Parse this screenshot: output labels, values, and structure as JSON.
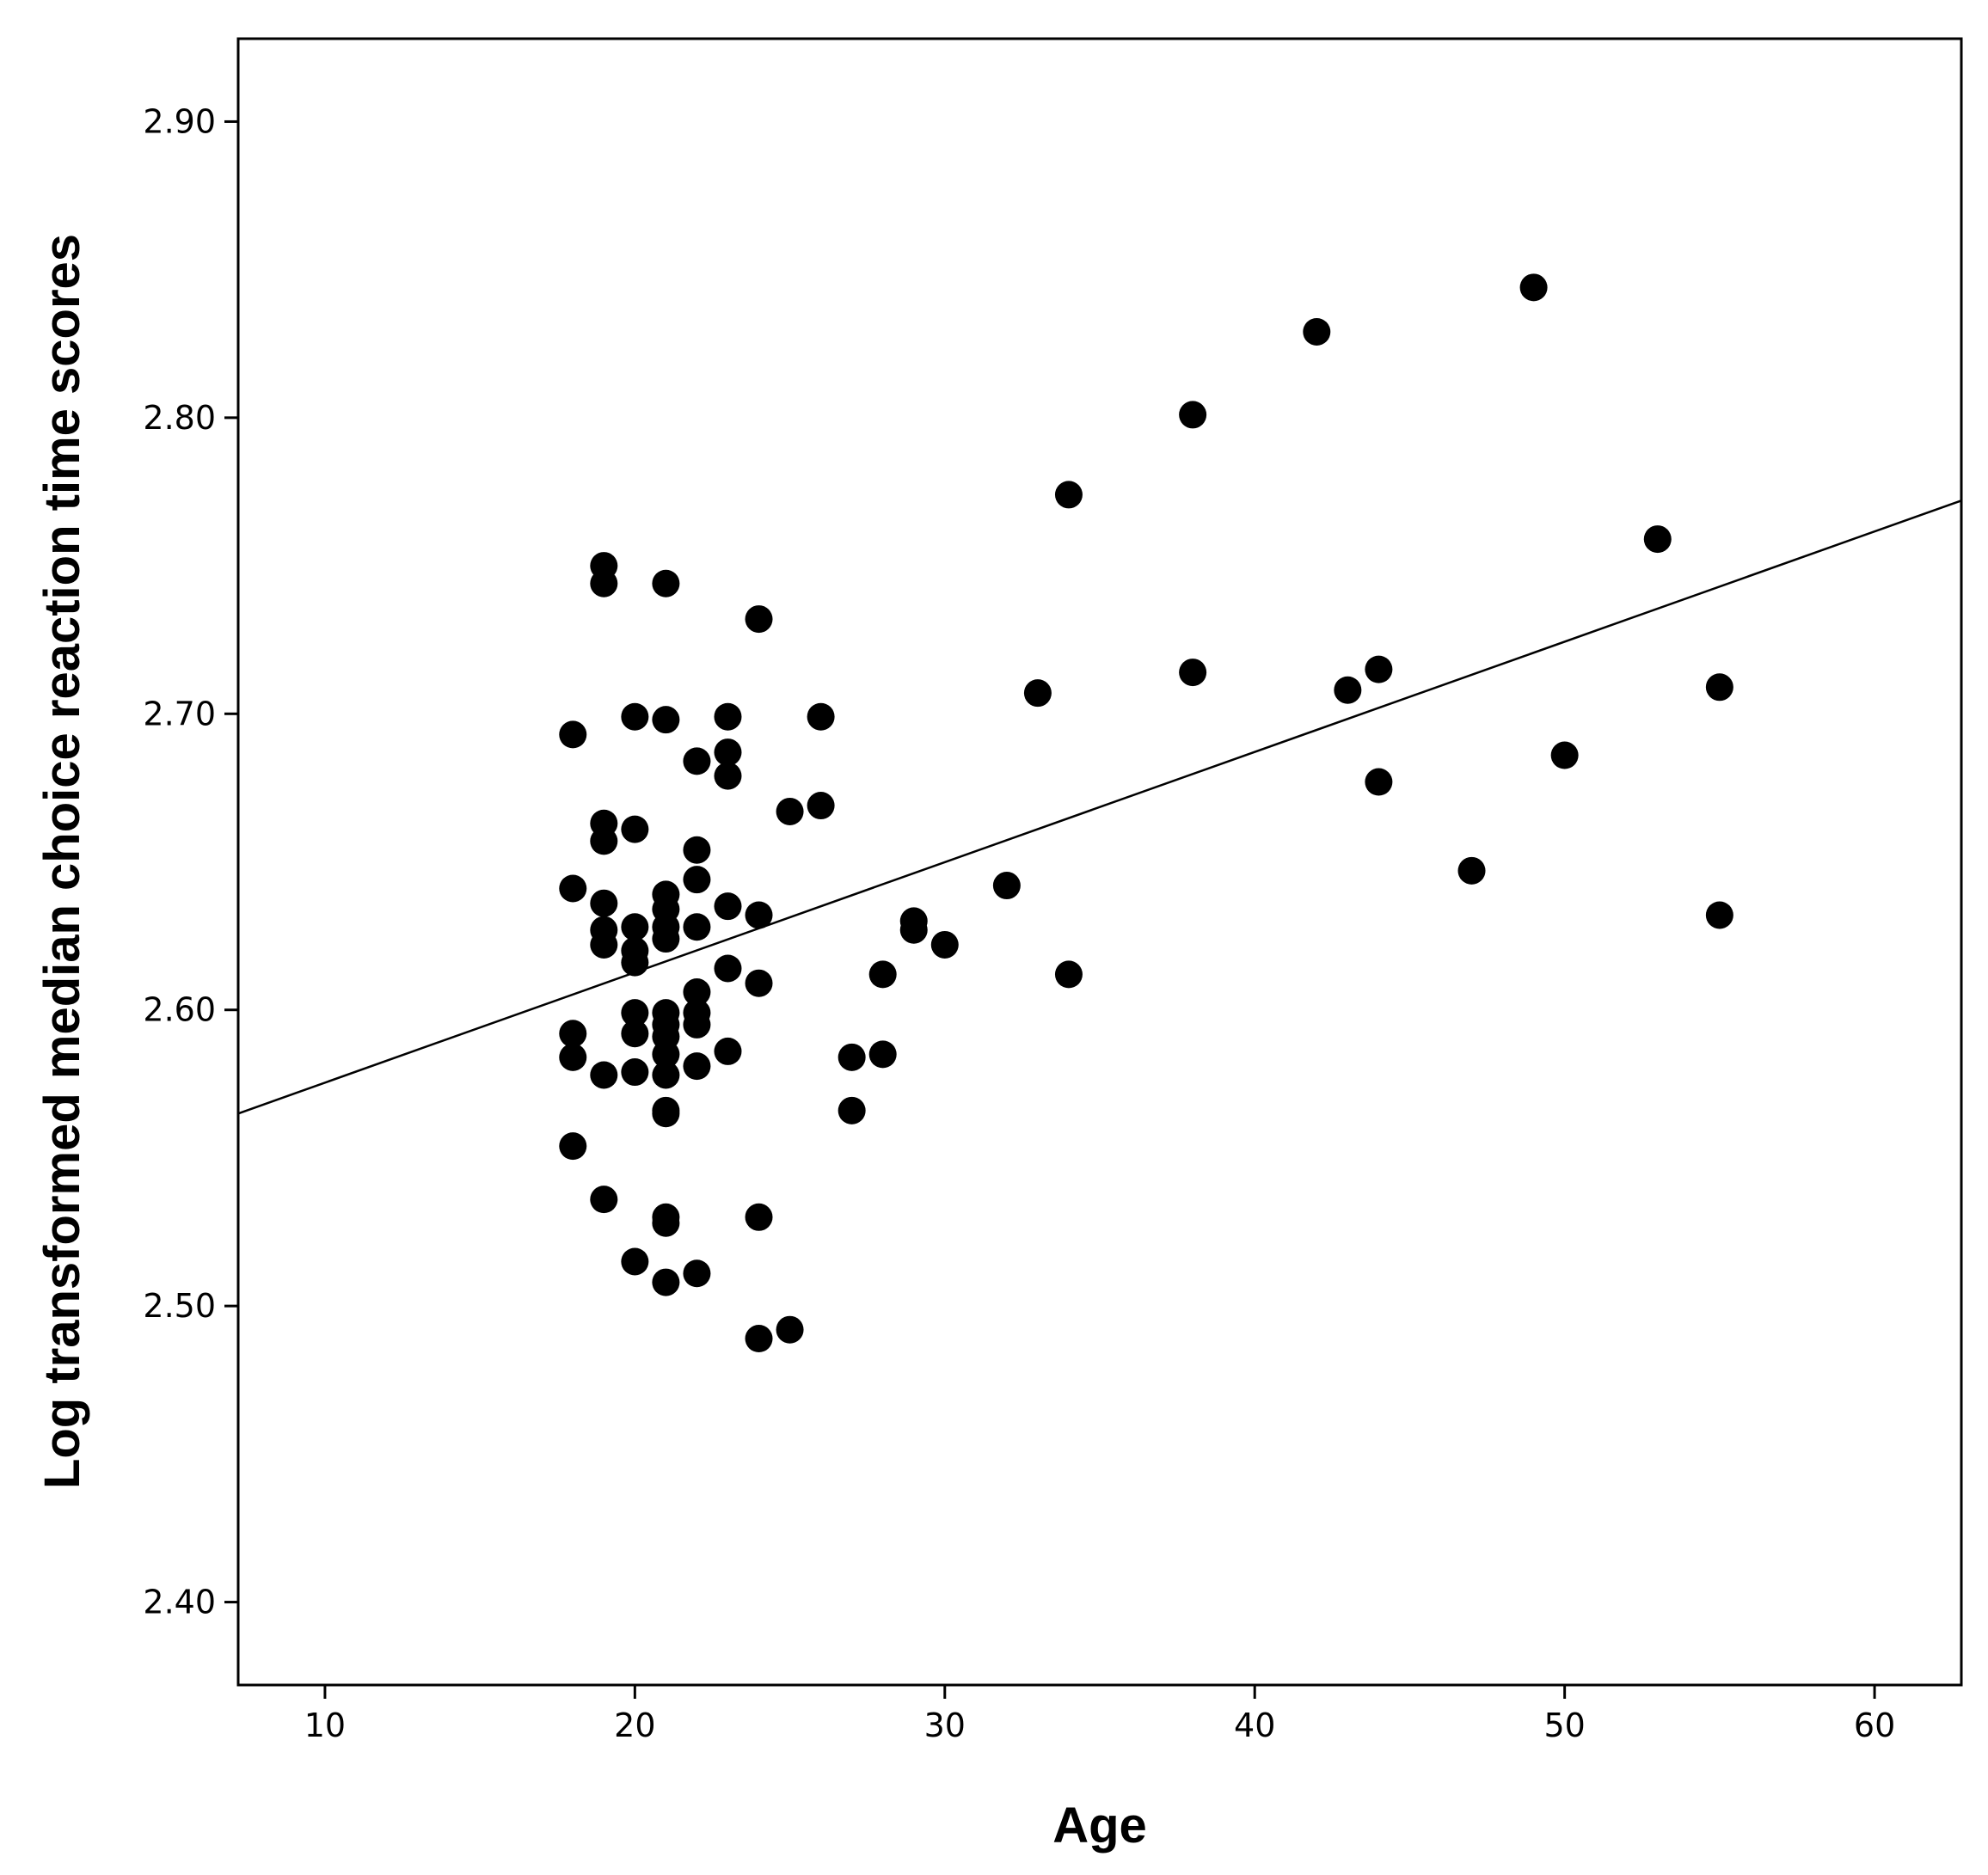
{
  "chart_data": {
    "type": "scatter",
    "xlabel": "Age",
    "ylabel": "Log transformed median choice reaction time scores",
    "xlim": [
      7.2,
      62.8
    ],
    "ylim": [
      2.372,
      2.928
    ],
    "x_ticks": [
      "10",
      "20",
      "30",
      "40",
      "50",
      "60"
    ],
    "y_ticks": [
      "2.40",
      "2.50",
      "2.60",
      "2.70",
      "2.80",
      "2.90"
    ],
    "grid": false,
    "fit_line": {
      "x": [
        7.2,
        62.8
      ],
      "y": [
        2.565,
        2.772
      ]
    },
    "marker_color": "#000000",
    "points": [
      [
        18,
        2.693
      ],
      [
        18,
        2.641
      ],
      [
        18,
        2.592
      ],
      [
        18,
        2.584
      ],
      [
        18,
        2.554
      ],
      [
        19,
        2.75
      ],
      [
        19,
        2.744
      ],
      [
        19,
        2.663
      ],
      [
        19,
        2.657
      ],
      [
        19,
        2.636
      ],
      [
        19,
        2.627
      ],
      [
        19,
        2.622
      ],
      [
        19,
        2.578
      ],
      [
        19,
        2.536
      ],
      [
        20,
        2.699
      ],
      [
        20,
        2.661
      ],
      [
        20,
        2.628
      ],
      [
        20,
        2.62
      ],
      [
        20,
        2.616
      ],
      [
        20,
        2.599
      ],
      [
        20,
        2.592
      ],
      [
        20,
        2.579
      ],
      [
        20,
        2.515
      ],
      [
        21,
        2.744
      ],
      [
        21,
        2.698
      ],
      [
        21,
        2.639
      ],
      [
        21,
        2.634
      ],
      [
        21,
        2.628
      ],
      [
        21,
        2.624
      ],
      [
        21,
        2.599
      ],
      [
        21,
        2.595
      ],
      [
        21,
        2.591
      ],
      [
        21,
        2.585
      ],
      [
        21,
        2.578
      ],
      [
        21,
        2.566
      ],
      [
        21,
        2.565
      ],
      [
        21,
        2.53
      ],
      [
        21,
        2.528
      ],
      [
        21,
        2.508
      ],
      [
        22,
        2.684
      ],
      [
        22,
        2.654
      ],
      [
        22,
        2.644
      ],
      [
        22,
        2.628
      ],
      [
        22,
        2.606
      ],
      [
        22,
        2.599
      ],
      [
        22,
        2.595
      ],
      [
        22,
        2.581
      ],
      [
        22,
        2.511
      ],
      [
        23,
        2.699
      ],
      [
        23,
        2.687
      ],
      [
        23,
        2.679
      ],
      [
        23,
        2.635
      ],
      [
        23,
        2.614
      ],
      [
        23,
        2.586
      ],
      [
        24,
        2.732
      ],
      [
        24,
        2.632
      ],
      [
        24,
        2.609
      ],
      [
        24,
        2.53
      ],
      [
        24,
        2.489
      ],
      [
        25,
        2.667
      ],
      [
        25,
        2.492
      ],
      [
        26,
        2.699
      ],
      [
        26,
        2.669
      ],
      [
        27,
        2.584
      ],
      [
        27,
        2.566
      ],
      [
        28,
        2.612
      ],
      [
        28,
        2.585
      ],
      [
        29,
        2.63
      ],
      [
        29,
        2.627
      ],
      [
        30,
        2.622
      ],
      [
        32,
        2.642
      ],
      [
        33,
        2.707
      ],
      [
        34,
        2.774
      ],
      [
        34,
        2.612
      ],
      [
        38,
        2.801
      ],
      [
        38,
        2.714
      ],
      [
        42,
        2.829
      ],
      [
        43,
        2.708
      ],
      [
        44,
        2.715
      ],
      [
        44,
        2.677
      ],
      [
        47,
        2.647
      ],
      [
        49,
        2.844
      ],
      [
        50,
        2.686
      ],
      [
        53,
        2.759
      ],
      [
        55,
        2.709
      ],
      [
        55,
        2.632
      ]
    ]
  }
}
